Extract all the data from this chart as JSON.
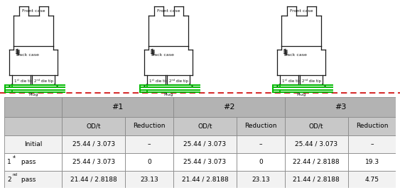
{
  "col_headers": [
    "OD/t",
    "Reduction",
    "OD/t",
    "Reduction",
    "OD/t",
    "Reduction"
  ],
  "table_data": [
    [
      "25.44 / 3.073",
      "–",
      "25.44 / 3.073",
      "–",
      "25.44 / 3.073",
      "–"
    ],
    [
      "25.44 / 3.073",
      "0",
      "25.44 / 3.073",
      "0",
      "22.44 / 2.8188",
      "19.3"
    ],
    [
      "21.44 / 2.8188",
      "23.13",
      "21.44 / 2.8188",
      "23.13",
      "21.44 / 2.8188",
      "4.75"
    ]
  ],
  "header_bg": "#b3b3b3",
  "subheader_bg": "#c8c8c8",
  "data_bg_even": "#f2f2f2",
  "data_bg_odd": "#ffffff",
  "border_color": "#888888",
  "text_color": "#000000",
  "green_color": "#00bb00",
  "red_dashed_color": "#cc0000",
  "bg_color": "#ffffff"
}
